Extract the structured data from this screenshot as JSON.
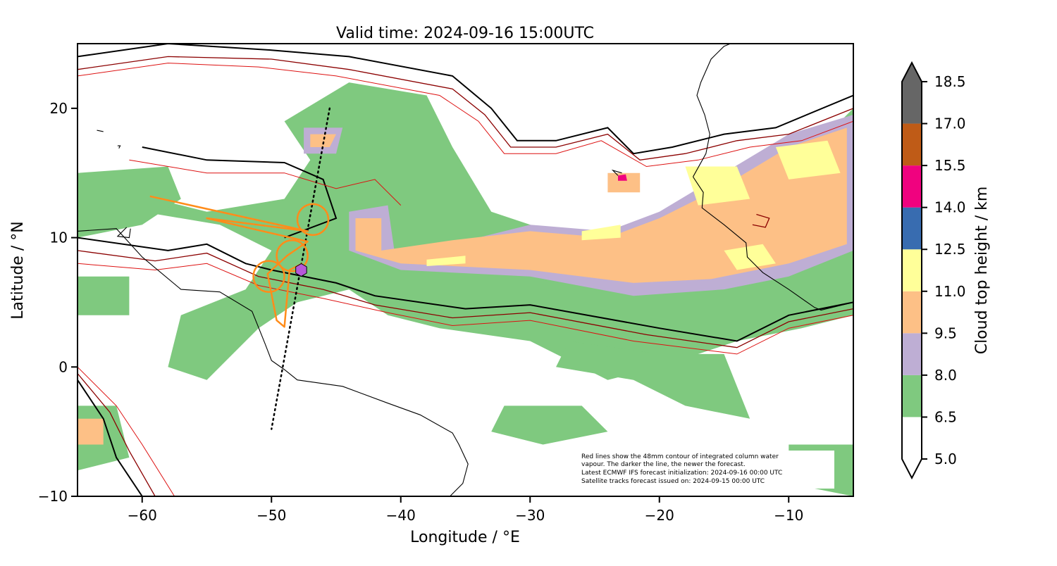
{
  "title": "Valid time: 2024-09-16 15:00UTC",
  "axes": {
    "xlabel": "Longitude / °E",
    "ylabel": "Latitude / °N",
    "xlim": [
      -65,
      -5
    ],
    "ylim": [
      -10,
      25
    ],
    "xticks": [
      -60,
      -50,
      -40,
      -30,
      -20,
      -10
    ],
    "xtick_labels": [
      "−60",
      "−50",
      "−40",
      "−30",
      "−20",
      "−10"
    ],
    "yticks": [
      -10,
      0,
      10,
      20
    ],
    "ytick_labels": [
      "−10",
      "0",
      "10",
      "20"
    ]
  },
  "colorbar": {
    "label": "Cloud top height / km",
    "levels": [
      5.0,
      6.5,
      8.0,
      9.5,
      11.0,
      12.5,
      14.0,
      15.5,
      17.0,
      18.5
    ],
    "level_labels": [
      "5.0",
      "6.5",
      "8.0",
      "9.5",
      "11.0",
      "12.5",
      "14.0",
      "15.5",
      "17.0",
      "18.5"
    ],
    "colors": [
      "#ffffff",
      "#7fc97f",
      "#beaed4",
      "#fdc086",
      "#ffff99",
      "#386cb0",
      "#f0027f",
      "#bf5b17",
      "#666666"
    ],
    "extend": "both"
  },
  "note": [
    "Red lines show the 48mm contour of integrated column water",
    "vapour. The darker the line, the newer the forecast.",
    "Latest ECMWF IFS forecast initialization: 2024-09-16 00:00 UTC",
    "Satellite tracks forecast issued on: 2024-09-15 00:00 UTC"
  ],
  "overlays": {
    "satellite_track": {
      "color": "#000000",
      "style": "dotted",
      "points": [
        [
          -45.5,
          20
        ],
        [
          -50,
          -4.8
        ]
      ]
    },
    "flight_track": {
      "color": "#ff8c1a",
      "points": [
        [
          -59.4,
          13.2
        ],
        [
          -47.2,
          10.5
        ],
        [
          -55,
          11.5
        ],
        [
          -47.2,
          9.7
        ],
        [
          -48.8,
          8.6
        ],
        [
          -50.3,
          7.2
        ],
        [
          -49.6,
          3.6
        ],
        [
          -49.0,
          3.1
        ],
        [
          -48.6,
          7.5
        ],
        [
          -47.6,
          8.0
        ]
      ],
      "circles": [
        [
          -46.8,
          11.4
        ],
        [
          -48.4,
          8.6
        ],
        [
          -50.2,
          7.0
        ]
      ],
      "circle_radius_deg": 1.2
    },
    "station_marker": {
      "color": "#b659d9",
      "lon": -47.7,
      "lat": 7.5
    }
  },
  "cloud_regions": [
    {
      "level": 1,
      "poly": [
        [
          -61,
          13.5
        ],
        [
          -55,
          12
        ],
        [
          -49,
          13
        ],
        [
          -47,
          16
        ],
        [
          -49,
          19
        ],
        [
          -44,
          22
        ],
        [
          -38,
          21
        ],
        [
          -36,
          17
        ],
        [
          -33,
          12
        ],
        [
          -27,
          10
        ],
        [
          -22,
          11
        ],
        [
          -16,
          13
        ],
        [
          -12,
          16
        ],
        [
          -7,
          18
        ],
        [
          -5,
          20
        ],
        [
          -5,
          4
        ],
        [
          -9,
          3
        ],
        [
          -14,
          2
        ],
        [
          -20,
          0
        ],
        [
          -24,
          -1
        ],
        [
          -30,
          2
        ],
        [
          -37,
          3
        ],
        [
          -41,
          4
        ],
        [
          -44,
          6
        ],
        [
          -48,
          5
        ],
        [
          -51,
          3
        ],
        [
          -55,
          -1
        ],
        [
          -58,
          0
        ],
        [
          -57,
          4
        ],
        [
          -52,
          6
        ],
        [
          -50,
          9
        ],
        [
          -54,
          11
        ],
        [
          -60,
          12
        ]
      ]
    },
    {
      "level": 1,
      "poly": [
        [
          -28,
          0
        ],
        [
          -22,
          -1
        ],
        [
          -18,
          -3
        ],
        [
          -13,
          -4
        ],
        [
          -15,
          1
        ],
        [
          -20,
          1
        ],
        [
          -27,
          2
        ]
      ]
    },
    {
      "level": 1,
      "poly": [
        [
          -65,
          15
        ],
        [
          -58,
          15.5
        ],
        [
          -57,
          13
        ],
        [
          -60,
          11
        ],
        [
          -65,
          10
        ]
      ]
    },
    {
      "level": 1,
      "poly": [
        [
          -65,
          7
        ],
        [
          -61,
          7
        ],
        [
          -61,
          4
        ],
        [
          -65,
          4
        ]
      ]
    },
    {
      "level": 1,
      "poly": [
        [
          -65,
          -3
        ],
        [
          -62,
          -3
        ],
        [
          -61,
          -7
        ],
        [
          -65,
          -8
        ]
      ]
    },
    {
      "level": 1,
      "poly": [
        [
          -10,
          -6
        ],
        [
          -5,
          -6
        ],
        [
          -5,
          -10
        ],
        [
          -10,
          -9
        ]
      ]
    },
    {
      "level": 1,
      "poly": [
        [
          -32,
          -3
        ],
        [
          -26,
          -3
        ],
        [
          -24,
          -5
        ],
        [
          -29,
          -6
        ],
        [
          -33,
          -5
        ]
      ]
    },
    {
      "level": 2,
      "poly": [
        [
          -44,
          12
        ],
        [
          -41,
          12.5
        ],
        [
          -40.5,
          9
        ],
        [
          -36,
          9.5
        ],
        [
          -30,
          11
        ],
        [
          -24,
          10.5
        ],
        [
          -20,
          12
        ],
        [
          -15,
          15
        ],
        [
          -10,
          18
        ],
        [
          -5,
          19.5
        ],
        [
          -5,
          9
        ],
        [
          -10,
          7
        ],
        [
          -15,
          6
        ],
        [
          -22,
          5.5
        ],
        [
          -30,
          7
        ],
        [
          -40,
          7.5
        ],
        [
          -44,
          9
        ]
      ]
    },
    {
      "level": 2,
      "poly": [
        [
          -47.5,
          18.5
        ],
        [
          -44.5,
          18.5
        ],
        [
          -45,
          16.5
        ],
        [
          -47.5,
          16.5
        ]
      ]
    },
    {
      "level": 3,
      "poly": [
        [
          -43.5,
          11.5
        ],
        [
          -41.5,
          11.5
        ],
        [
          -41.5,
          9
        ],
        [
          -36,
          9.8
        ],
        [
          -30,
          10.5
        ],
        [
          -24,
          10
        ],
        [
          -20,
          11.5
        ],
        [
          -15,
          14
        ],
        [
          -10,
          17
        ],
        [
          -5.5,
          18.5
        ],
        [
          -5.5,
          9.5
        ],
        [
          -10,
          8
        ],
        [
          -16,
          6.8
        ],
        [
          -22,
          6.5
        ],
        [
          -30,
          7.5
        ],
        [
          -40,
          8
        ],
        [
          -43.5,
          9
        ]
      ]
    },
    {
      "level": 3,
      "poly": [
        [
          -47,
          18
        ],
        [
          -45,
          18
        ],
        [
          -45.5,
          17
        ],
        [
          -47,
          17
        ]
      ]
    },
    {
      "level": 3,
      "poly": [
        [
          -24,
          15
        ],
        [
          -21.5,
          15
        ],
        [
          -21.5,
          13.5
        ],
        [
          -24,
          13.5
        ]
      ]
    },
    {
      "level": 3,
      "poly": [
        [
          -65,
          -4
        ],
        [
          -63,
          -4
        ],
        [
          -63,
          -6
        ],
        [
          -65,
          -6
        ]
      ]
    },
    {
      "level": 4,
      "poly": [
        [
          -18,
          15.5
        ],
        [
          -14,
          15.5
        ],
        [
          -13,
          13
        ],
        [
          -17,
          12.5
        ]
      ]
    },
    {
      "level": 4,
      "poly": [
        [
          -11,
          17
        ],
        [
          -7,
          17.5
        ],
        [
          -6,
          15
        ],
        [
          -10,
          14.5
        ]
      ]
    },
    {
      "level": 4,
      "poly": [
        [
          -15,
          9
        ],
        [
          -12,
          9.5
        ],
        [
          -11,
          8
        ],
        [
          -14,
          7.5
        ]
      ]
    },
    {
      "level": 4,
      "poly": [
        [
          -26,
          10.5
        ],
        [
          -23,
          11
        ],
        [
          -23,
          10
        ],
        [
          -26,
          9.8
        ]
      ]
    },
    {
      "level": 4,
      "poly": [
        [
          -38,
          8.3
        ],
        [
          -35,
          8.6
        ],
        [
          -35,
          8
        ],
        [
          -38,
          7.8
        ]
      ]
    },
    {
      "level": 6,
      "poly": [
        [
          -23.2,
          14.8
        ],
        [
          -22.6,
          14.9
        ],
        [
          -22.5,
          14.4
        ],
        [
          -23.2,
          14.4
        ]
      ]
    }
  ],
  "coastlines": [
    [
      [
        -65,
        10.5
      ],
      [
        -62,
        10.7
      ],
      [
        -60,
        8.5
      ],
      [
        -57,
        6
      ],
      [
        -54,
        5.8
      ],
      [
        -51.5,
        4.3
      ],
      [
        -50.5,
        1.8
      ],
      [
        -50,
        0.5
      ],
      [
        -49,
        -0.2
      ],
      [
        -48,
        -1
      ],
      [
        -44.5,
        -1.5
      ],
      [
        -41,
        -2.8
      ],
      [
        -38.5,
        -3.7
      ],
      [
        -36,
        -5.1
      ],
      [
        -35.5,
        -6
      ],
      [
        -34.8,
        -7.5
      ],
      [
        -35.2,
        -9
      ],
      [
        -36.2,
        -10
      ]
    ],
    [
      [
        -17.4,
        14.7
      ],
      [
        -16.6,
        13.5
      ],
      [
        -16.7,
        12.3
      ],
      [
        -15,
        11
      ],
      [
        -13.3,
        9.6
      ],
      [
        -13.2,
        8.5
      ],
      [
        -12,
        7.3
      ],
      [
        -10,
        6
      ],
      [
        -8,
        4.6
      ],
      [
        -7.5,
        4.4
      ],
      [
        -5,
        5
      ]
    ],
    [
      [
        -17.4,
        14.7
      ],
      [
        -16.4,
        16.5
      ],
      [
        -16.1,
        18
      ],
      [
        -16.5,
        19.5
      ],
      [
        -17.1,
        21
      ],
      [
        -16.8,
        22
      ],
      [
        -16,
        23.8
      ],
      [
        -15,
        24.8
      ],
      [
        -14.5,
        25
      ]
    ],
    [
      [
        -61.2,
        10.8
      ],
      [
        -61.9,
        10.1
      ],
      [
        -61,
        10
      ],
      [
        -60.9,
        10.7
      ]
    ],
    [
      [
        -22.9,
        15
      ],
      [
        -23.6,
        15.2
      ],
      [
        -23.2,
        14.8
      ]
    ],
    [
      [
        -61.9,
        17.1
      ],
      [
        -61.7,
        17.1
      ],
      [
        -61.8,
        16.9
      ]
    ],
    [
      [
        -63.5,
        18.3
      ],
      [
        -63,
        18.2
      ]
    ]
  ],
  "moisture_contours": [
    {
      "color": "#000000",
      "width": 2,
      "points": [
        [
          -65,
          24
        ],
        [
          -58,
          25
        ],
        [
          -50,
          24.5
        ],
        [
          -44,
          24
        ],
        [
          -36,
          22.5
        ],
        [
          -33,
          20
        ],
        [
          -31,
          17.5
        ],
        [
          -28,
          17.5
        ],
        [
          -24,
          18.5
        ],
        [
          -22,
          16.5
        ],
        [
          -19,
          17
        ],
        [
          -15,
          18
        ],
        [
          -11,
          18.5
        ],
        [
          -5,
          21
        ]
      ]
    },
    {
      "color": "#000000",
      "width": 2,
      "points": [
        [
          -65,
          10
        ],
        [
          -58,
          9
        ],
        [
          -55,
          9.5
        ],
        [
          -52,
          8
        ],
        [
          -50,
          7.5
        ],
        [
          -45,
          6.5
        ],
        [
          -42,
          5.5
        ],
        [
          -35,
          4.5
        ],
        [
          -30,
          4.8
        ],
        [
          -20,
          3
        ],
        [
          -14,
          2
        ],
        [
          -10,
          4
        ],
        [
          -5,
          5
        ]
      ]
    },
    {
      "color": "#8b0000",
      "width": 1.3,
      "points": [
        [
          -65,
          23
        ],
        [
          -58,
          24
        ],
        [
          -50,
          23.8
        ],
        [
          -44,
          23
        ],
        [
          -36,
          21.5
        ],
        [
          -33.5,
          19.5
        ],
        [
          -31.5,
          17
        ],
        [
          -28,
          17
        ],
        [
          -24,
          18
        ],
        [
          -21.5,
          16
        ],
        [
          -18,
          16.5
        ],
        [
          -14,
          17.5
        ],
        [
          -10,
          18
        ],
        [
          -5,
          20
        ]
      ]
    },
    {
      "color": "#8b0000",
      "width": 1.3,
      "points": [
        [
          -65,
          9
        ],
        [
          -59,
          8.2
        ],
        [
          -55,
          8.8
        ],
        [
          -51,
          7
        ],
        [
          -46,
          6
        ],
        [
          -42,
          4.8
        ],
        [
          -36,
          3.8
        ],
        [
          -30,
          4.2
        ],
        [
          -21,
          2.5
        ],
        [
          -14,
          1.5
        ],
        [
          -10,
          3.5
        ],
        [
          -5,
          4.5
        ]
      ]
    },
    {
      "color": "#dd1111",
      "width": 1,
      "points": [
        [
          -65,
          22.5
        ],
        [
          -58,
          23.5
        ],
        [
          -51,
          23.2
        ],
        [
          -45,
          22.5
        ],
        [
          -37,
          21
        ],
        [
          -34,
          19
        ],
        [
          -32,
          16.5
        ],
        [
          -28,
          16.5
        ],
        [
          -24.5,
          17.5
        ],
        [
          -21,
          15.5
        ],
        [
          -17,
          16
        ],
        [
          -13,
          17
        ],
        [
          -9,
          17.5
        ],
        [
          -5,
          19
        ]
      ]
    },
    {
      "color": "#dd1111",
      "width": 1,
      "points": [
        [
          -65,
          8
        ],
        [
          -59,
          7.5
        ],
        [
          -55,
          8
        ],
        [
          -51,
          6.3
        ],
        [
          -46,
          5.3
        ],
        [
          -41,
          4.2
        ],
        [
          -36,
          3.2
        ],
        [
          -30,
          3.6
        ],
        [
          -22,
          2
        ],
        [
          -14,
          1
        ],
        [
          -10,
          3
        ],
        [
          -5,
          4
        ]
      ]
    },
    {
      "color": "#000000",
      "width": 2,
      "points": [
        [
          -60,
          17
        ],
        [
          -55,
          16
        ],
        [
          -49,
          15.8
        ],
        [
          -46,
          14.5
        ],
        [
          -45,
          11.5
        ],
        [
          -49,
          10
        ]
      ]
    },
    {
      "color": "#dd1111",
      "width": 1,
      "points": [
        [
          -61,
          16
        ],
        [
          -55,
          15
        ],
        [
          -49,
          15
        ],
        [
          -45,
          13.8
        ],
        [
          -42,
          14.5
        ],
        [
          -40,
          12.5
        ]
      ]
    },
    {
      "color": "#000000",
      "width": 2,
      "points": [
        [
          -65,
          -1
        ],
        [
          -63,
          -4
        ],
        [
          -62,
          -7
        ],
        [
          -60,
          -10
        ]
      ]
    },
    {
      "color": "#8b0000",
      "width": 1.3,
      "points": [
        [
          -65,
          -0.5
        ],
        [
          -62.5,
          -3.5
        ],
        [
          -61,
          -6.5
        ],
        [
          -59,
          -10
        ]
      ]
    },
    {
      "color": "#dd1111",
      "width": 1,
      "points": [
        [
          -65,
          0
        ],
        [
          -62,
          -3
        ],
        [
          -60,
          -6
        ],
        [
          -57.5,
          -10
        ]
      ]
    },
    {
      "color": "#8b0000",
      "width": 1.3,
      "points": [
        [
          -12.5,
          11.8
        ],
        [
          -11.5,
          11.5
        ],
        [
          -11.8,
          10.8
        ],
        [
          -12.8,
          11
        ]
      ]
    }
  ]
}
